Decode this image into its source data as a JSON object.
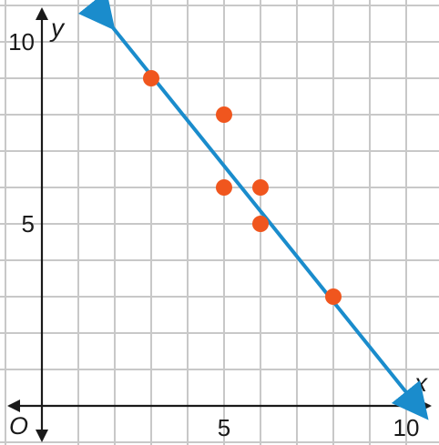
{
  "chart_data": {
    "type": "scatter",
    "x_axis_label": "x",
    "y_axis_label": "y",
    "origin_label": "O",
    "xlim": [
      0,
      10
    ],
    "ylim": [
      0,
      10
    ],
    "x_ticks": [
      5,
      10
    ],
    "y_ticks": [
      5,
      10
    ],
    "x_tick_labels": [
      "5",
      "10"
    ],
    "y_tick_labels": [
      "5",
      "10"
    ],
    "grid": true,
    "points": [
      {
        "x": 3,
        "y": 9
      },
      {
        "x": 5,
        "y": 8
      },
      {
        "x": 5,
        "y": 6
      },
      {
        "x": 6,
        "y": 6
      },
      {
        "x": 6,
        "y": 5
      },
      {
        "x": 8,
        "y": 3
      }
    ],
    "trend_line": {
      "x1": 1.7,
      "y1": 10.7,
      "x2": 10.3,
      "y2": 0.0
    },
    "colors": {
      "points": "#f0561e",
      "trend_line": "#1a8ccc",
      "grid": "#c8c8c8",
      "axes": "#1a1a1a"
    }
  }
}
